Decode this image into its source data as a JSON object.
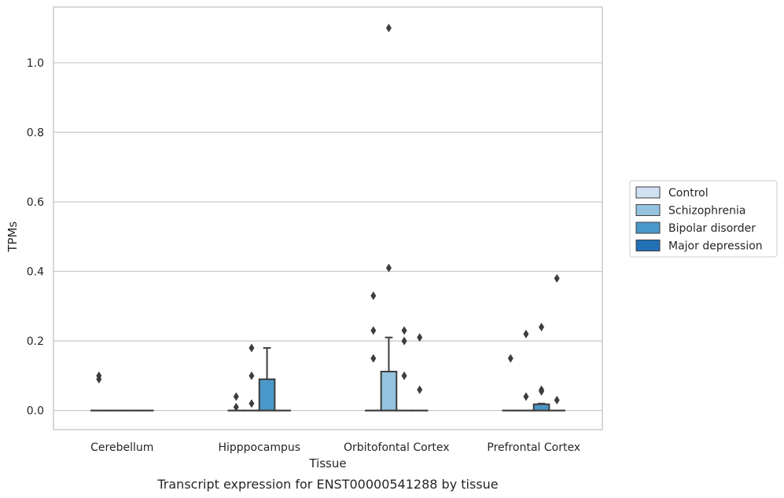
{
  "chart_data": {
    "type": "box",
    "title": "",
    "caption": "Transcript expression for ENST00000541288 by tissue",
    "xlabel": "Tissue",
    "ylabel": "TPMs",
    "ylim": [
      -0.055,
      1.16
    ],
    "yticks": [
      0.0,
      0.2,
      0.4,
      0.6,
      0.8,
      1.0
    ],
    "ytick_labels": [
      "0.0",
      "0.2",
      "0.4",
      "0.6",
      "0.8",
      "1.0"
    ],
    "grid": "horizontal",
    "legend_position": "right",
    "categories": [
      "Cerebellum",
      "Hipppocampus",
      "Orbitofontal Cortex",
      "Prefrontal Cortex"
    ],
    "series": [
      {
        "name": "Control",
        "color": "#d0e1f2",
        "boxes": [
          {
            "q1": 0,
            "median": 0,
            "q3": 0,
            "whisker_low": 0,
            "whisker_high": 0,
            "outliers": [
              0.1,
              0.09
            ]
          },
          {
            "q1": 0,
            "median": 0,
            "q3": 0,
            "whisker_low": 0,
            "whisker_high": 0,
            "outliers": [
              0.04,
              0.01
            ]
          },
          {
            "q1": 0,
            "median": 0,
            "q3": 0,
            "whisker_low": 0,
            "whisker_high": 0,
            "outliers": [
              0.33,
              0.23,
              0.15
            ]
          },
          {
            "q1": 0,
            "median": 0,
            "q3": 0,
            "whisker_low": 0,
            "whisker_high": 0,
            "outliers": [
              0.15
            ]
          }
        ]
      },
      {
        "name": "Schizophrenia",
        "color": "#94c4df",
        "boxes": [
          {
            "q1": 0,
            "median": 0,
            "q3": 0,
            "whisker_low": 0,
            "whisker_high": 0,
            "outliers": []
          },
          {
            "q1": 0,
            "median": 0,
            "q3": 0,
            "whisker_low": 0,
            "whisker_high": 0,
            "outliers": [
              0.18,
              0.1,
              0.02
            ]
          },
          {
            "q1": 0,
            "median": 0,
            "q3": 0.112,
            "whisker_low": 0,
            "whisker_high": 0.21,
            "outliers": [
              1.1,
              0.41
            ]
          },
          {
            "q1": 0,
            "median": 0,
            "q3": 0,
            "whisker_low": 0,
            "whisker_high": 0,
            "outliers": [
              0.22,
              0.04
            ]
          }
        ]
      },
      {
        "name": "Bipolar disorder",
        "color": "#4a98c9",
        "boxes": [
          {
            "q1": 0,
            "median": 0,
            "q3": 0,
            "whisker_low": 0,
            "whisker_high": 0,
            "outliers": []
          },
          {
            "q1": 0,
            "median": 0,
            "q3": 0.09,
            "whisker_low": 0,
            "whisker_high": 0.18,
            "outliers": []
          },
          {
            "q1": 0,
            "median": 0,
            "q3": 0,
            "whisker_low": 0,
            "whisker_high": 0,
            "outliers": [
              0.23,
              0.2,
              0.1
            ]
          },
          {
            "q1": 0,
            "median": 0,
            "q3": 0.018,
            "whisker_low": 0,
            "whisker_high": 0.02,
            "outliers": [
              0.24,
              0.06,
              0.055
            ]
          }
        ]
      },
      {
        "name": "Major depression",
        "color": "#2270b5",
        "boxes": [
          {
            "q1": 0,
            "median": 0,
            "q3": 0,
            "whisker_low": 0,
            "whisker_high": 0,
            "outliers": []
          },
          {
            "q1": 0,
            "median": 0,
            "q3": 0,
            "whisker_low": 0,
            "whisker_high": 0,
            "outliers": []
          },
          {
            "q1": 0,
            "median": 0,
            "q3": 0,
            "whisker_low": 0,
            "whisker_high": 0,
            "outliers": [
              0.21,
              0.06
            ]
          },
          {
            "q1": 0,
            "median": 0,
            "q3": 0,
            "whisker_low": 0,
            "whisker_high": 0,
            "outliers": [
              0.38,
              0.03
            ]
          }
        ]
      }
    ]
  }
}
